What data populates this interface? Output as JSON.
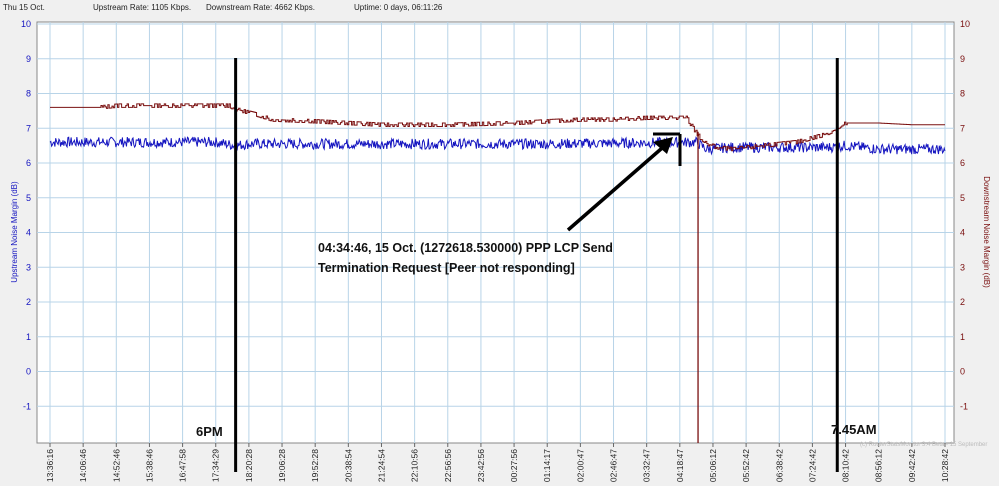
{
  "status": {
    "date": "Thu 15 Oct.",
    "upstream_rate": "Upstream Rate: 1105 Kbps.",
    "downstream_rate": "Downstream Rate: 4662 Kbps.",
    "uptime": "Uptime: 0 days, 06:11:26"
  },
  "colors": {
    "upstream": "#1515c0",
    "downstream": "#7a1010",
    "plot_bg": "#ffffff",
    "grid": "#b8d4e8",
    "annotation": "#000000"
  },
  "chart_data": {
    "type": "line",
    "ylabel_left": "Upstream Noise Margin (dB)",
    "ylabel_right": "Downstream Noise Margin (dB)",
    "ylim": [
      -2,
      10
    ],
    "yticks": [
      10,
      9,
      8,
      7,
      6,
      5,
      4,
      3,
      2,
      1,
      0,
      -1
    ],
    "grid": true,
    "x_tick_labels": [
      "13:36:16",
      "14:06:46",
      "14:52:46",
      "15:38:46",
      "16:47:58",
      "17:34:29",
      "18:20:28",
      "19:06:28",
      "19:52:28",
      "20:38:54",
      "21:24:54",
      "22:10:56",
      "22:56:56",
      "23:42:56",
      "00:27:56",
      "01:14:17",
      "02:00:47",
      "02:46:47",
      "03:32:47",
      "04:18:47",
      "05:06:12",
      "05:52:42",
      "06:38:42",
      "07:24:42",
      "08:10:42",
      "08:56:12",
      "09:42:42",
      "10:28:42"
    ],
    "series": [
      {
        "name": "Upstream Noise Margin (dB)",
        "x": [
          0,
          5,
          5.6,
          6,
          10,
          15,
          19.5,
          19.8,
          20.5,
          22,
          23.5,
          24,
          25,
          26,
          27
        ],
        "values": [
          6.6,
          6.6,
          6.5,
          6.55,
          6.55,
          6.55,
          6.6,
          6.4,
          6.45,
          6.45,
          6.45,
          6.5,
          6.4,
          6.4,
          6.4
        ]
      },
      {
        "name": "Downstream Noise Margin (dB)",
        "x": [
          0,
          1.5,
          2,
          5.4,
          5.6,
          6.2,
          6.7,
          8,
          9,
          10,
          12,
          14,
          16,
          17,
          18,
          19.2,
          19.4,
          19.7,
          20.1,
          20.6,
          21.5,
          22.5,
          23.3,
          23.8,
          24,
          25,
          26,
          27
        ],
        "values": [
          7.6,
          7.6,
          7.65,
          7.65,
          7.55,
          7.4,
          7.25,
          7.2,
          7.15,
          7.1,
          7.1,
          7.15,
          7.25,
          7.25,
          7.3,
          7.3,
          7.0,
          6.6,
          6.45,
          6.4,
          6.5,
          6.6,
          6.8,
          7.0,
          7.15,
          7.15,
          7.1,
          7.1
        ]
      }
    ],
    "events": [
      {
        "label": "6PM",
        "x": 5.6
      },
      {
        "label": "7.45AM",
        "x": 23.75
      }
    ],
    "drop_x": 19.55
  },
  "annotations": {
    "callout_line1": "04:34:46, 15 Oct.  (1272618.530000) PPP LCP Send",
    "callout_line2": "Termination Request [Peer not responding]",
    "marker_6pm": "6PM",
    "marker_745am": "7.45AM",
    "watermark": "(c) RouterStatsMonitor 3.4 Beta - 15 September"
  }
}
